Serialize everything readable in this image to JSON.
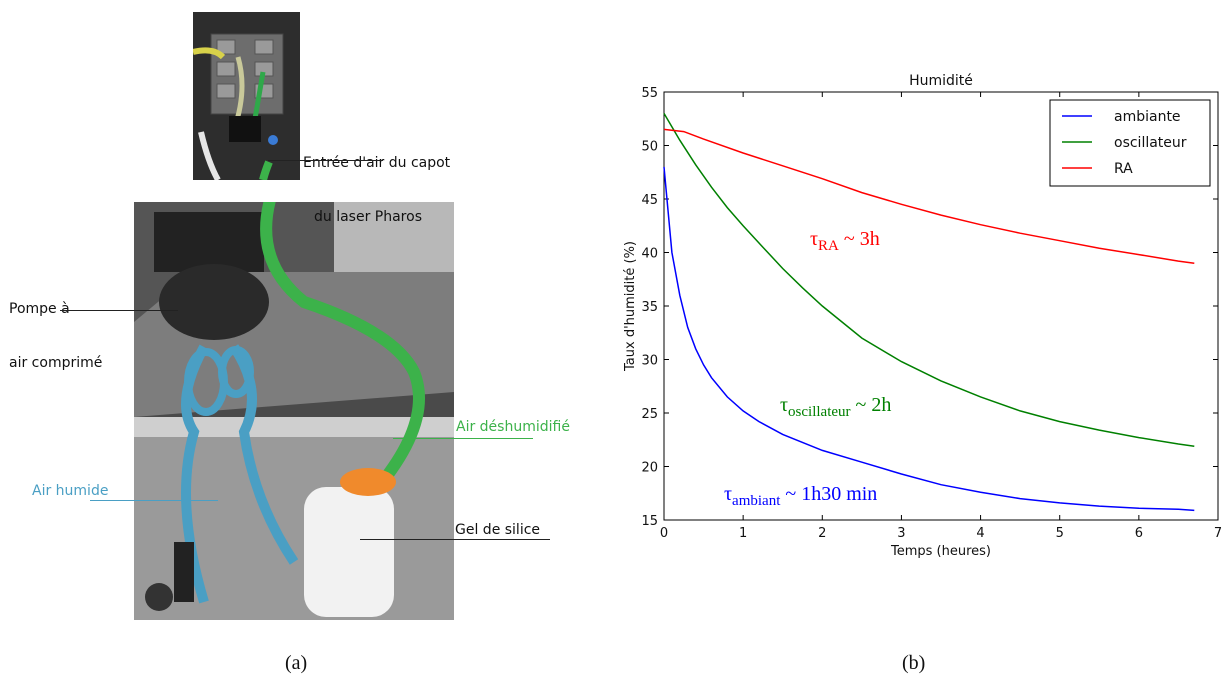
{
  "panel_a": {
    "labels": {
      "air_inlet_line1": "Entrée d'air du capot",
      "air_inlet_line2": "du laser Pharos",
      "pump_line1": "Pompe à",
      "pump_line2": "air comprimé",
      "dry_air": "Air déshumidifié",
      "humid_air": "Air humide",
      "silica_gel": "Gel de silice"
    },
    "caption": "(a)",
    "colors": {
      "dry_air": "#3cb24a",
      "humid_air": "#4a9fc4"
    }
  },
  "panel_b": {
    "caption": "(b)"
  },
  "chart_data": {
    "type": "line",
    "title": "Humidité",
    "xlabel": "Temps (heures)",
    "ylabel": "Taux d'humidité (%)",
    "xlim": [
      0,
      7
    ],
    "ylim": [
      15,
      55
    ],
    "xticks": [
      0,
      1,
      2,
      3,
      4,
      5,
      6,
      7
    ],
    "yticks": [
      15,
      20,
      25,
      30,
      35,
      40,
      45,
      50,
      55
    ],
    "grid": false,
    "legend_position": "top-right",
    "series": [
      {
        "name": "ambiante",
        "color": "#0000ff",
        "x": [
          0,
          0.1,
          0.2,
          0.3,
          0.4,
          0.5,
          0.6,
          0.8,
          1.0,
          1.2,
          1.5,
          2.0,
          2.5,
          3.0,
          3.5,
          4.0,
          4.5,
          5.0,
          5.5,
          6.0,
          6.5,
          6.7
        ],
        "y": [
          48,
          40,
          36,
          33,
          31,
          29.5,
          28.3,
          26.5,
          25.2,
          24.2,
          23.0,
          21.5,
          20.4,
          19.3,
          18.3,
          17.6,
          17.0,
          16.6,
          16.3,
          16.1,
          16.0,
          15.9
        ]
      },
      {
        "name": "oscillateur",
        "color": "#008000",
        "x": [
          0,
          0.2,
          0.4,
          0.6,
          0.8,
          1.0,
          1.25,
          1.5,
          1.75,
          2.0,
          2.5,
          3.0,
          3.5,
          4.0,
          4.5,
          5.0,
          5.5,
          6.0,
          6.5,
          6.7
        ],
        "y": [
          53,
          50.5,
          48.2,
          46.1,
          44.2,
          42.5,
          40.5,
          38.5,
          36.7,
          35.0,
          32.0,
          29.8,
          28.0,
          26.5,
          25.2,
          24.2,
          23.4,
          22.7,
          22.1,
          21.9
        ]
      },
      {
        "name": "RA",
        "color": "#ff0000",
        "x": [
          0,
          0.25,
          0.5,
          1.0,
          1.5,
          2.0,
          2.5,
          3.0,
          3.5,
          4.0,
          4.5,
          5.0,
          5.5,
          6.0,
          6.5,
          6.7
        ],
        "y": [
          51.5,
          51.3,
          50.6,
          49.3,
          48.1,
          46.9,
          45.6,
          44.5,
          43.5,
          42.6,
          41.8,
          41.1,
          40.4,
          39.8,
          39.2,
          39.0
        ]
      }
    ],
    "annotations": [
      {
        "symbol": "τ",
        "subscript": "RA",
        "text": "~ 3h",
        "color": "#ff0000"
      },
      {
        "symbol": "τ",
        "subscript": "oscillateur",
        "text": "~ 2h",
        "color": "#008000"
      },
      {
        "symbol": "τ",
        "subscript": "ambiant",
        "text": "~ 1h30 min",
        "color": "#0000ff"
      }
    ]
  }
}
